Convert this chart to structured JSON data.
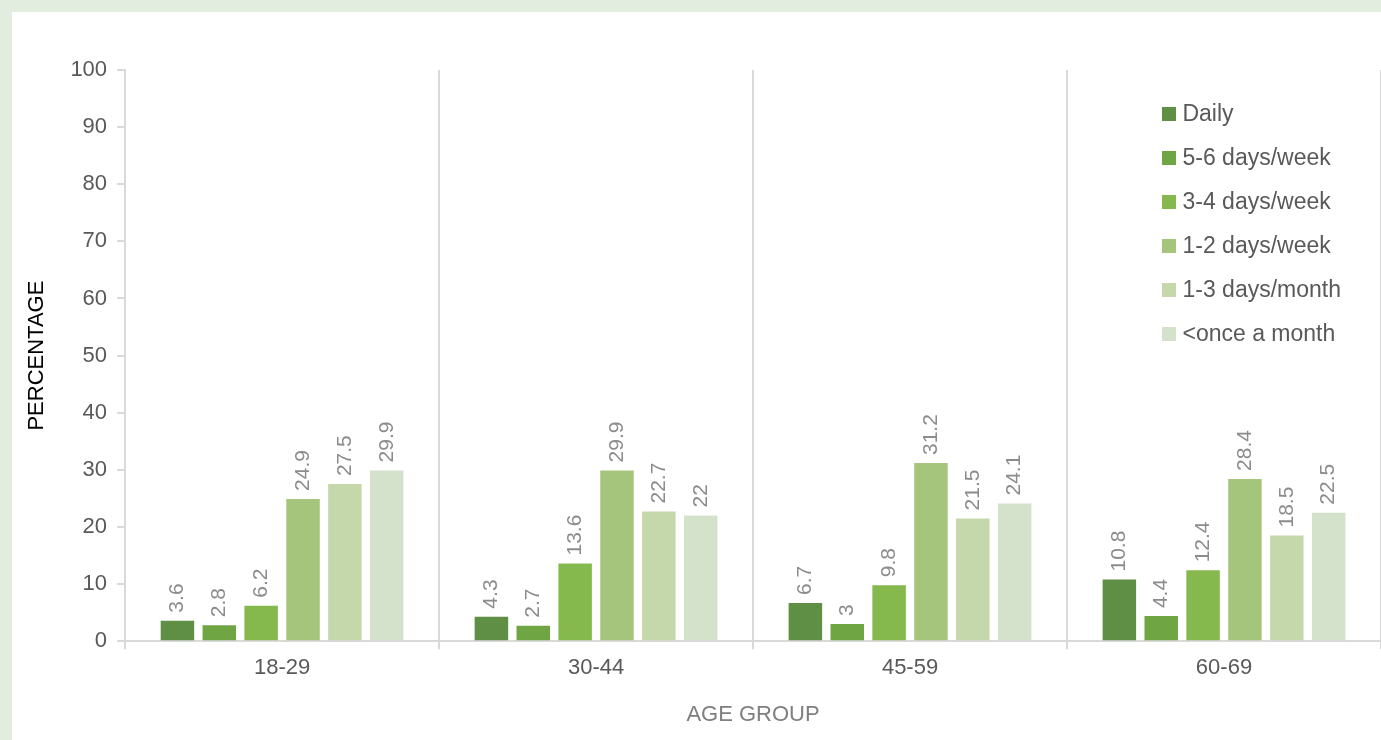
{
  "chart_data": {
    "type": "bar",
    "xlabel": "AGE GROUP",
    "ylabel": "PERCENTAGE",
    "categories": [
      "18-29",
      "30-44",
      "45-59",
      "60-69"
    ],
    "series": [
      {
        "name": "Daily",
        "color": "#5f8f45",
        "values": [
          3.6,
          4.3,
          6.7,
          10.8
        ]
      },
      {
        "name": "5-6 days/week",
        "color": "#70a544",
        "values": [
          2.8,
          2.7,
          3,
          4.4
        ]
      },
      {
        "name": "3-4 days/week",
        "color": "#85b94e",
        "values": [
          6.2,
          13.6,
          9.8,
          12.4
        ]
      },
      {
        "name": "1-2 days/week",
        "color": "#a6c57c",
        "values": [
          24.9,
          29.9,
          31.2,
          28.4
        ]
      },
      {
        "name": "1-3 days/month",
        "color": "#c4d8ab",
        "values": [
          27.5,
          22.7,
          21.5,
          18.5
        ]
      },
      {
        "name": "<once a month",
        "color": "#d5e2cb",
        "values": [
          29.9,
          22,
          24.1,
          22.5
        ]
      }
    ],
    "ylim": [
      0,
      100
    ],
    "yticks": [
      0,
      10,
      20,
      30,
      40,
      50,
      60,
      70,
      80,
      90,
      100
    ],
    "grid": "x",
    "legend": "top right",
    "data_labels": true
  }
}
